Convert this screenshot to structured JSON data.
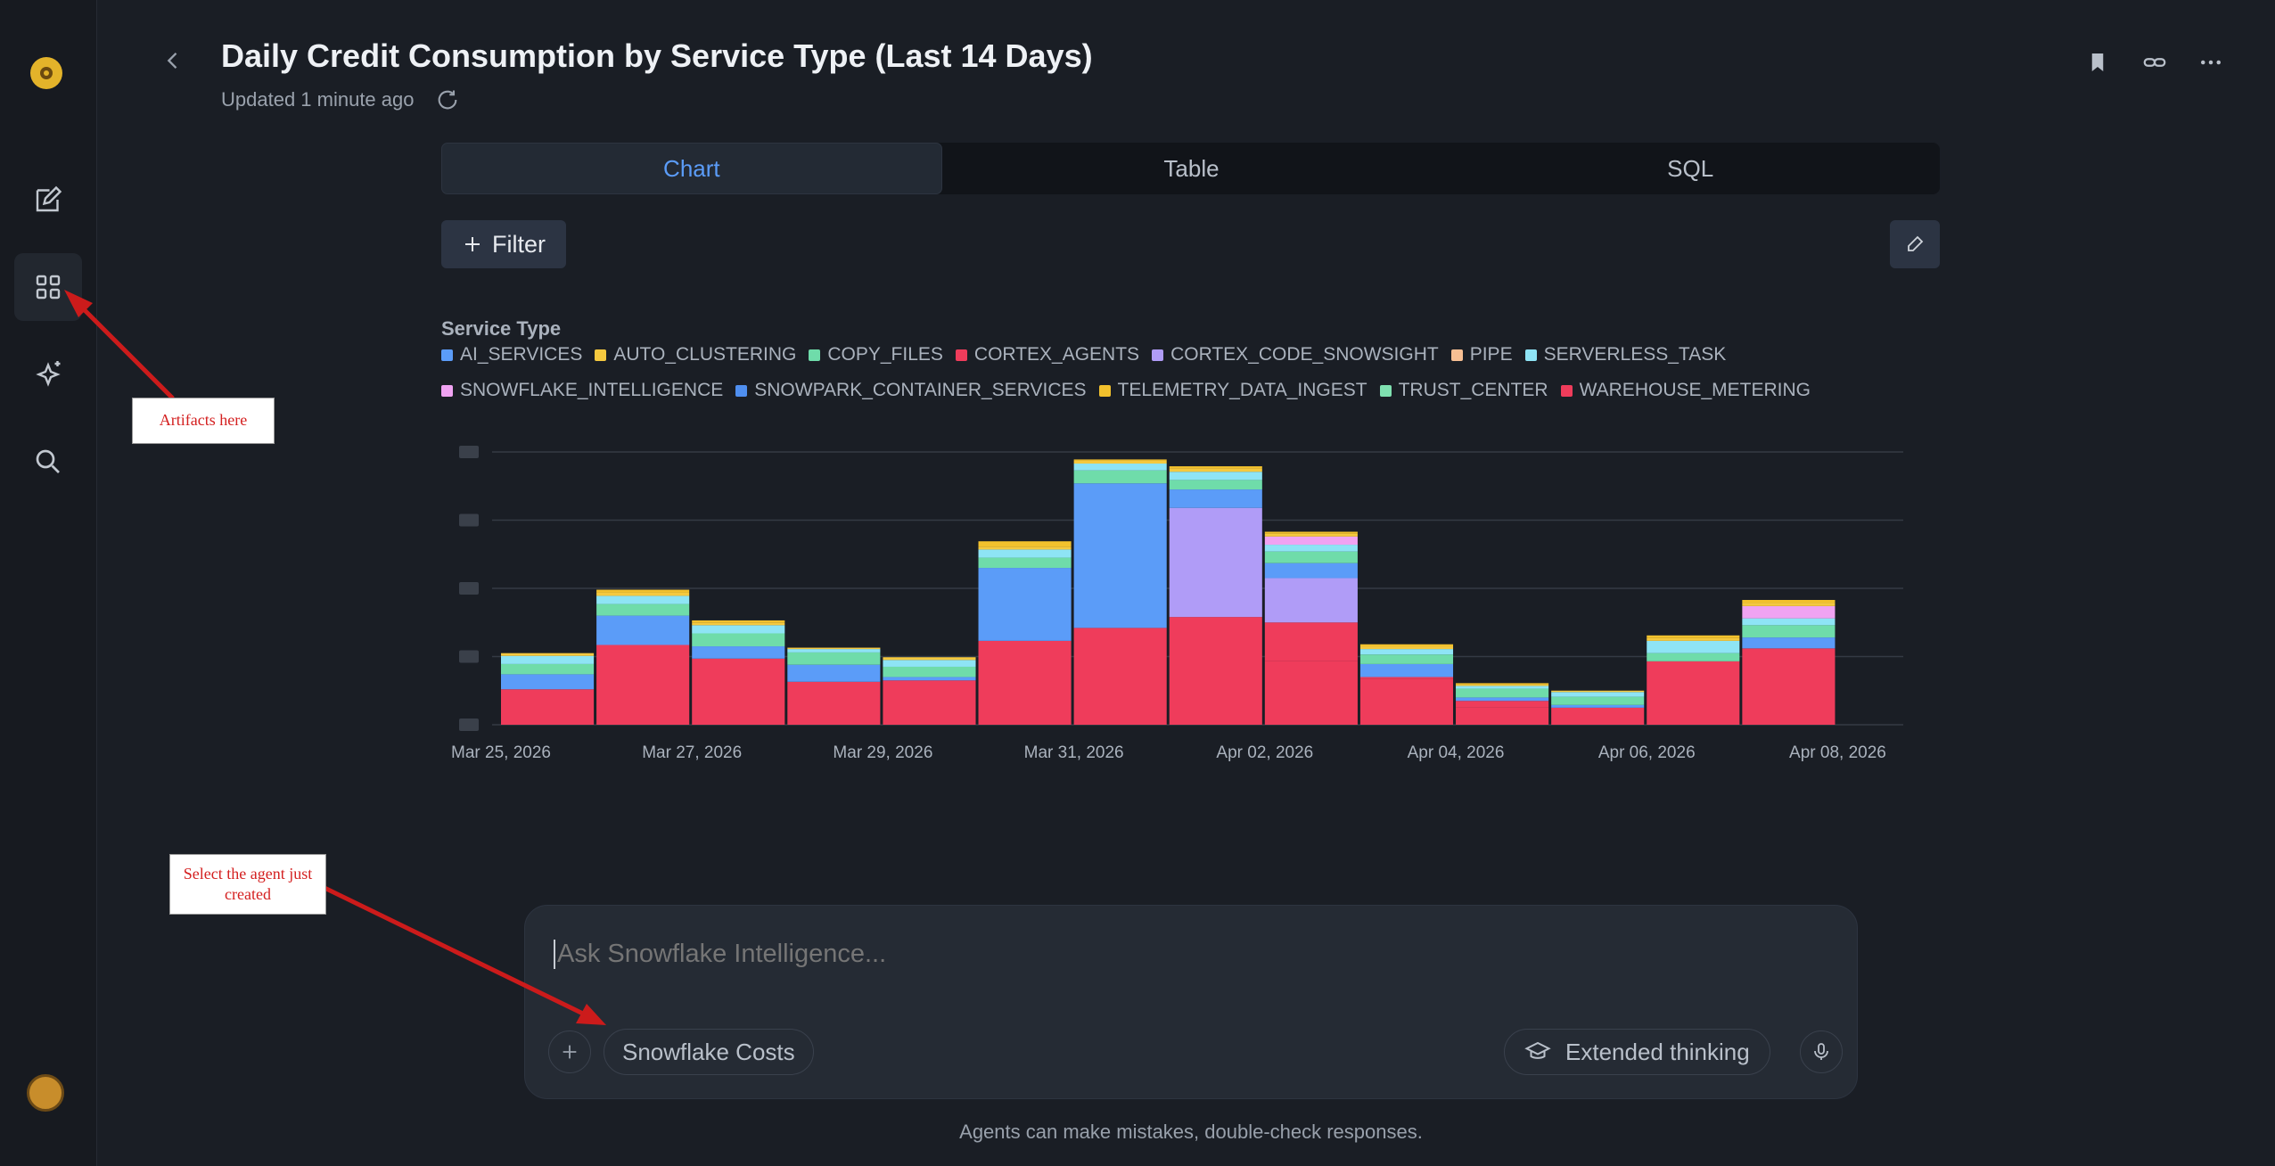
{
  "header": {
    "title": "Daily Credit Consumption by Service Type (Last 14 Days)",
    "updated": "Updated 1 minute ago"
  },
  "tabs": [
    {
      "label": "Chart",
      "active": true
    },
    {
      "label": "Table",
      "active": false
    },
    {
      "label": "SQL",
      "active": false
    }
  ],
  "toolbar": {
    "filter_label": "Filter"
  },
  "legend": {
    "title": "Service Type",
    "items": [
      {
        "label": "AI_SERVICES",
        "color": "#5b9cf8"
      },
      {
        "label": "AUTO_CLUSTERING",
        "color": "#f5c93f"
      },
      {
        "label": "COPY_FILES",
        "color": "#6fdcaa"
      },
      {
        "label": "CORTEX_AGENTS",
        "color": "#ef3c5b"
      },
      {
        "label": "CORTEX_CODE_SNOWSIGHT",
        "color": "#b09cf7"
      },
      {
        "label": "PIPE",
        "color": "#f7bf93"
      },
      {
        "label": "SERVERLESS_TASK",
        "color": "#8ee4f5"
      },
      {
        "label": "SNOWFLAKE_INTELLIGENCE",
        "color": "#f0a3f2"
      },
      {
        "label": "SNOWPARK_CONTAINER_SERVICES",
        "color": "#4f8ff0"
      },
      {
        "label": "TELEMETRY_DATA_INGEST",
        "color": "#f2c12d"
      },
      {
        "label": "TRUST_CENTER",
        "color": "#7fe0b0"
      },
      {
        "label": "WAREHOUSE_METERING",
        "color": "#ef3c5b"
      }
    ]
  },
  "chart_data": {
    "type": "bar",
    "stacked": true,
    "categories": [
      "Mar 25, 2026",
      "Mar 26, 2026",
      "Mar 27, 2026",
      "Mar 28, 2026",
      "Mar 29, 2026",
      "Mar 30, 2026",
      "Mar 31, 2026",
      "Apr 01, 2026",
      "Apr 02, 2026",
      "Apr 03, 2026",
      "Apr 04, 2026",
      "Apr 05, 2026",
      "Apr 06, 2026",
      "Apr 07, 2026",
      "Apr 08, 2026"
    ],
    "tick_labels": [
      "Mar 25, 2026",
      "Mar 27, 2026",
      "Mar 29, 2026",
      "Mar 31, 2026",
      "Apr 02, 2026",
      "Apr 04, 2026",
      "Apr 06, 2026",
      "Apr 08, 2026"
    ],
    "ylim": [
      0,
      4
    ],
    "y_ticks": [
      0,
      1,
      2,
      3,
      4
    ],
    "y_tick_labels_blurred": true,
    "grid": true,
    "series": [
      {
        "name": "WAREHOUSE_METERING",
        "values": [
          0.52,
          1.17,
          0.97,
          0.63,
          0.65,
          1.23,
          0,
          0,
          0.93,
          0.67,
          0.25,
          0.25,
          0.93,
          1.12,
          0
        ]
      },
      {
        "name": "CORTEX_AGENTS",
        "values": [
          0,
          0,
          0,
          0,
          0,
          0,
          1.42,
          1.58,
          0.57,
          0.03,
          0.1,
          0,
          0,
          0,
          0
        ]
      },
      {
        "name": "CORTEX_CODE_SNOWSIGHT",
        "values": [
          0,
          0,
          0,
          0,
          0,
          0,
          0,
          1.6,
          0.65,
          0,
          0,
          0,
          0,
          0,
          0
        ]
      },
      {
        "name": "AI_SERVICES",
        "values": [
          0.22,
          0.43,
          0.18,
          0.25,
          0.05,
          1.07,
          2.12,
          0.27,
          0.22,
          0.19,
          0.05,
          0.04,
          0,
          0.16,
          0
        ]
      },
      {
        "name": "COPY_FILES",
        "values": [
          0.15,
          0.17,
          0.19,
          0.18,
          0.15,
          0.15,
          0.19,
          0.14,
          0.17,
          0.14,
          0.13,
          0.12,
          0.12,
          0.18,
          0
        ]
      },
      {
        "name": "SERVERLESS_TASK",
        "values": [
          0.12,
          0.12,
          0.12,
          0.05,
          0.1,
          0.12,
          0.1,
          0.12,
          0.1,
          0.08,
          0.04,
          0.07,
          0.18,
          0.1,
          0
        ]
      },
      {
        "name": "SNOWFLAKE_INTELLIGENCE",
        "values": [
          0,
          0,
          0,
          0,
          0,
          0,
          0,
          0,
          0.12,
          0,
          0,
          0,
          0,
          0.18,
          0
        ]
      },
      {
        "name": "AUTO_CLUSTERING",
        "values": [
          0.04,
          0.05,
          0.04,
          0.02,
          0.04,
          0.04,
          0.04,
          0.05,
          0.04,
          0.04,
          0.02,
          0.02,
          0.04,
          0.05,
          0
        ]
      },
      {
        "name": "TELEMETRY_DATA_INGEST",
        "values": [
          0,
          0.04,
          0.03,
          0,
          0,
          0.08,
          0.02,
          0.03,
          0.03,
          0.03,
          0.02,
          0,
          0.04,
          0.04,
          0
        ]
      }
    ]
  },
  "composer": {
    "placeholder": "Ask Snowflake Intelligence...",
    "agent": "Snowflake Costs",
    "extended_thinking": "Extended thinking"
  },
  "disclaimer": "Agents can make mistakes, double-check responses.",
  "annotations": {
    "artifacts": "Artifacts here",
    "select_agent": "Select the agent just created"
  }
}
